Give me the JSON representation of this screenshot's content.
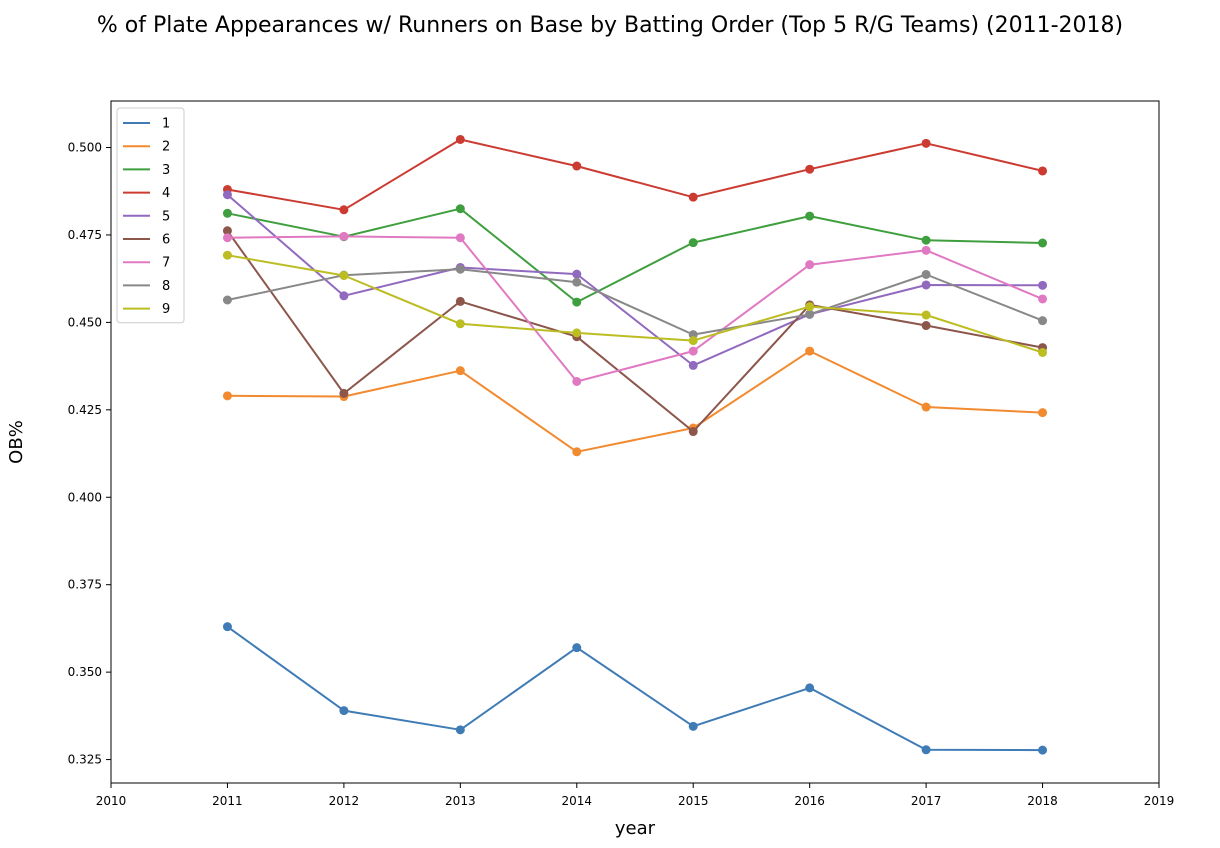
{
  "chart_data": {
    "type": "line",
    "title": "% of Plate Appearances w/ Runners on Base by Batting Order (Top 5 R/G Teams) (2011-2018)",
    "xlabel": "year",
    "ylabel": "OB%",
    "xlim": [
      2010,
      2019
    ],
    "ylim": [
      0.3183,
      0.5133
    ],
    "x_ticks": [
      2010,
      2011,
      2012,
      2013,
      2014,
      2015,
      2016,
      2017,
      2018,
      2019
    ],
    "y_ticks": [
      0.325,
      0.35,
      0.375,
      0.4,
      0.425,
      0.45,
      0.475,
      0.5
    ],
    "y_tick_labels": [
      "0.325",
      "0.350",
      "0.375",
      "0.400",
      "0.425",
      "0.450",
      "0.475",
      "0.500"
    ],
    "grid": false,
    "markers": true,
    "legend_position": "top-left",
    "x": [
      2011,
      2012,
      2013,
      2014,
      2015,
      2016,
      2017,
      2018
    ],
    "series": [
      {
        "name": "1",
        "color": "#3f7bb5",
        "values": [
          0.363,
          0.339,
          0.3335,
          0.357,
          0.3345,
          0.3455,
          0.3278,
          0.3277
        ]
      },
      {
        "name": "2",
        "color": "#f28a30",
        "values": [
          0.429,
          0.4288,
          0.4362,
          0.413,
          0.4198,
          0.4418,
          0.4258,
          0.4242
        ]
      },
      {
        "name": "3",
        "color": "#3f9f3f",
        "values": [
          0.4812,
          0.4745,
          0.4825,
          0.4558,
          0.4728,
          0.4804,
          0.4735,
          0.4727
        ]
      },
      {
        "name": "4",
        "color": "#cc3b32",
        "values": [
          0.488,
          0.4822,
          0.5023,
          0.4947,
          0.4858,
          0.4938,
          0.5012,
          0.4933
        ]
      },
      {
        "name": "5",
        "color": "#9169bf",
        "values": [
          0.4865,
          0.4576,
          0.4657,
          0.4638,
          0.4377,
          0.4523,
          0.4607,
          0.4606
        ]
      },
      {
        "name": "6",
        "color": "#8c564b",
        "values": [
          0.4762,
          0.4297,
          0.456,
          0.4459,
          0.4188,
          0.455,
          0.4491,
          0.4428
        ]
      },
      {
        "name": "7",
        "color": "#e079c2",
        "values": [
          0.4742,
          0.4746,
          0.4742,
          0.4331,
          0.4418,
          0.4665,
          0.4706,
          0.4567
        ]
      },
      {
        "name": "8",
        "color": "#888888",
        "values": [
          0.4564,
          0.4635,
          0.4652,
          0.4615,
          0.4465,
          0.4523,
          0.4637,
          0.4505
        ]
      },
      {
        "name": "9",
        "color": "#bcbd22",
        "values": [
          0.4692,
          0.4634,
          0.4496,
          0.447,
          0.4448,
          0.4545,
          0.4521,
          0.4414
        ]
      }
    ]
  }
}
